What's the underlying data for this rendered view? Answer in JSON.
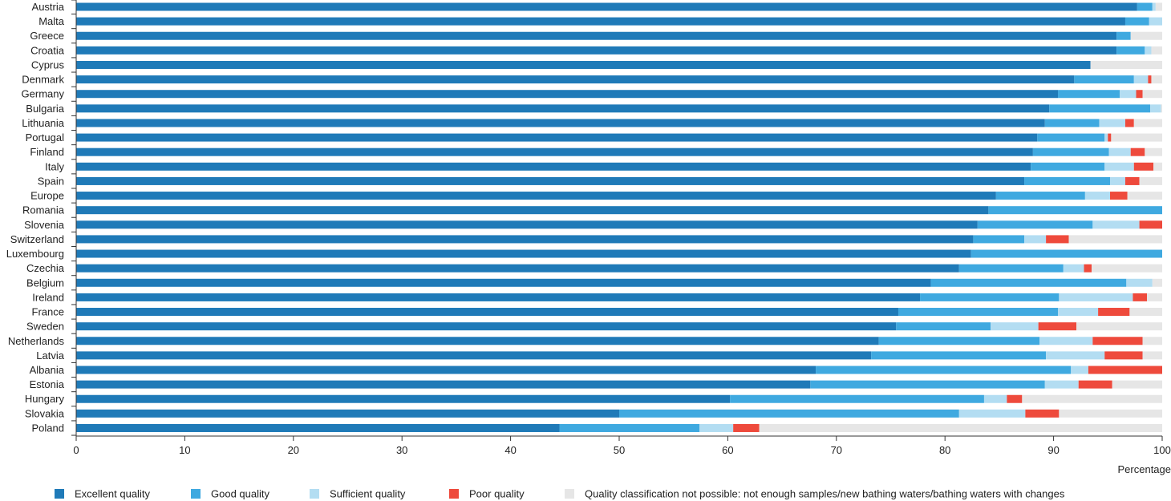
{
  "chart_data": {
    "type": "bar",
    "orientation": "horizontal",
    "stacked": true,
    "xlabel": "Percentage",
    "xlim": [
      0,
      100
    ],
    "xticks": [
      0,
      10,
      20,
      30,
      40,
      50,
      60,
      70,
      80,
      90,
      100
    ],
    "grid": false,
    "legend_position": "bottom",
    "categories": [
      "Austria",
      "Malta",
      "Greece",
      "Croatia",
      "Cyprus",
      "Denmark",
      "Germany",
      "Bulgaria",
      "Lithuania",
      "Portugal",
      "Finland",
      "Italy",
      "Spain",
      "Europe",
      "Romania",
      "Slovenia",
      "Switzerland",
      "Luxembourg",
      "Czechia",
      "Belgium",
      "Ireland",
      "France",
      "Sweden",
      "Netherlands",
      "Latvia",
      "Albania",
      "Estonia",
      "Hungary",
      "Slovakia",
      "Poland"
    ],
    "series": [
      {
        "name": "Excellent quality",
        "color": "#1f7ab8",
        "values": [
          97.7,
          96.6,
          95.8,
          95.8,
          93.4,
          91.9,
          90.4,
          89.6,
          89.2,
          88.5,
          88.1,
          87.9,
          87.3,
          84.7,
          84.0,
          83.0,
          82.6,
          82.4,
          81.3,
          78.7,
          77.7,
          75.7,
          75.5,
          73.9,
          73.2,
          68.1,
          67.6,
          60.2,
          50.0,
          44.5
        ],
        "labels": []
      },
      {
        "name": "Good quality",
        "color": "#3fa9e0",
        "values": [
          1.4,
          2.2,
          1.3,
          2.6,
          0,
          5.5,
          5.7,
          9.3,
          5.0,
          6.2,
          7.0,
          6.8,
          7.9,
          8.2,
          16.0,
          10.6,
          4.7,
          17.6,
          9.6,
          18.0,
          12.8,
          14.7,
          8.7,
          14.8,
          16.1,
          23.5,
          21.6,
          23.4,
          31.3,
          12.9
        ]
      },
      {
        "name": "Sufficient quality",
        "color": "#b3ddf2",
        "values": [
          0.3,
          1.2,
          0,
          0.6,
          0,
          1.3,
          1.5,
          1.0,
          2.4,
          0.3,
          2.0,
          2.7,
          1.4,
          2.3,
          0,
          4.3,
          2.0,
          0,
          1.9,
          2.4,
          6.8,
          3.7,
          4.4,
          4.9,
          5.4,
          1.6,
          3.1,
          2.1,
          6.1,
          3.1
        ]
      },
      {
        "name": "Poor quality",
        "color": "#ee4a3c",
        "values": [
          0,
          0,
          0,
          0,
          0,
          0.3,
          0.6,
          0,
          0.8,
          0.3,
          1.3,
          1.8,
          1.3,
          1.6,
          0,
          2.1,
          2.1,
          0,
          0.7,
          0,
          1.3,
          2.9,
          3.5,
          4.6,
          3.5,
          6.8,
          3.1,
          1.4,
          3.1,
          2.4
        ]
      },
      {
        "name": "Quality classification not possible:  not enough samples/new bathing waters/bathing waters with changes",
        "color": "#e6e6e6",
        "values": [
          0.6,
          0,
          2.9,
          1.0,
          6.6,
          1.0,
          1.8,
          0.1,
          2.6,
          4.7,
          1.6,
          0.8,
          2.1,
          3.2,
          0,
          0,
          8.6,
          0,
          6.5,
          0.9,
          1.4,
          3.0,
          7.9,
          1.8,
          1.8,
          0,
          4.6,
          12.9,
          9.5,
          37.1
        ]
      }
    ]
  }
}
